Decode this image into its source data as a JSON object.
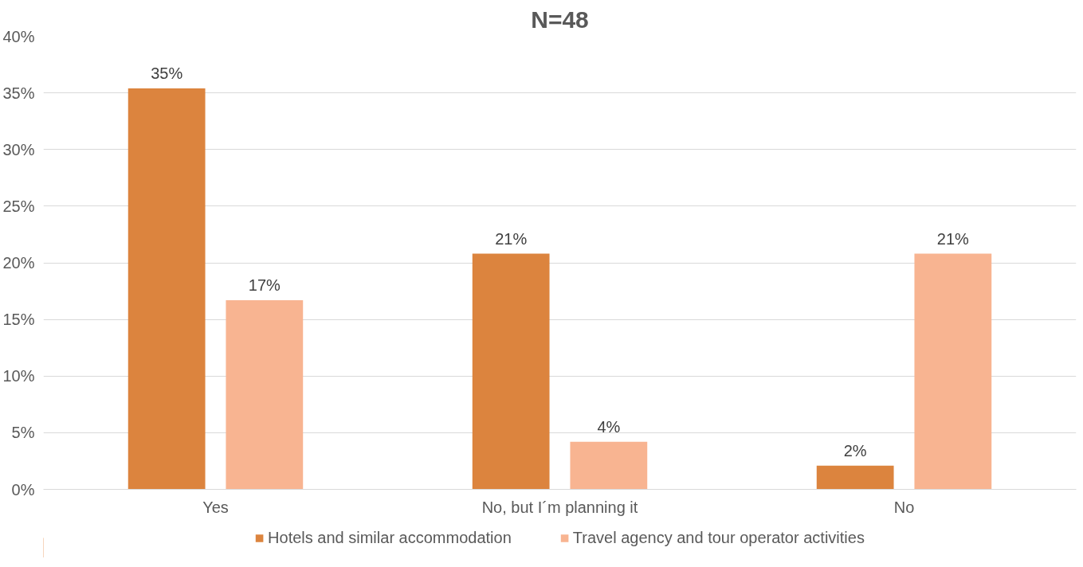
{
  "chart_data": {
    "type": "bar",
    "title": "N=48",
    "categories": [
      "Yes",
      "No, but I´m planning it",
      "No"
    ],
    "series": [
      {
        "name": "Hotels and similar accommodation",
        "color": "#dc843e",
        "values": [
          35.4,
          20.8,
          2.1
        ],
        "value_labels": [
          "35%",
          "21%",
          "2%"
        ]
      },
      {
        "name": "Travel agency and tour operator activities",
        "color": "#f8b491",
        "values": [
          16.7,
          4.2,
          20.8
        ],
        "value_labels": [
          "17%",
          "4%",
          "21%"
        ]
      }
    ],
    "ylim": [
      0,
      40
    ],
    "yticks": [
      {
        "value": 0,
        "label": "0%"
      },
      {
        "value": 5,
        "label": "5%"
      },
      {
        "value": 10,
        "label": "10%"
      },
      {
        "value": 15,
        "label": "15%"
      },
      {
        "value": 20,
        "label": "20%"
      },
      {
        "value": 25,
        "label": "25%"
      },
      {
        "value": 30,
        "label": "30%"
      },
      {
        "value": 35,
        "label": "35%"
      },
      {
        "value": 40,
        "label": "40%"
      }
    ],
    "grid": "y",
    "legend": "bottom"
  }
}
